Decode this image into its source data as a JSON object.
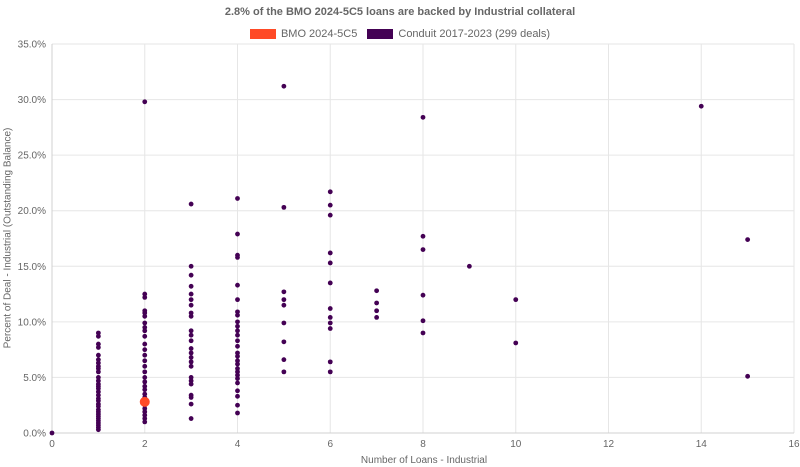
{
  "chart_data": {
    "type": "scatter",
    "title": "2.8% of the BMO 2024-5C5 loans are backed by Industrial collateral",
    "xlabel": "Number of Loans - Industrial",
    "ylabel": "Percent of Deal - Industrial (Outstanding Balance)",
    "xlim": [
      0,
      16
    ],
    "ylim": [
      0,
      35
    ],
    "x_ticks": [
      "0",
      "2",
      "4",
      "6",
      "8",
      "10",
      "12",
      "14",
      "16"
    ],
    "y_ticks": [
      "0.0%",
      "5.0%",
      "10.0%",
      "15.0%",
      "20.0%",
      "25.0%",
      "30.0%",
      "35.0%"
    ],
    "grid": true,
    "legend_position": "top",
    "series": [
      {
        "name": "BMO 2024-5C5",
        "color": "#ff4a26",
        "points": [
          [
            2,
            2.8
          ]
        ]
      },
      {
        "name": "Conduit 2017-2023 (299 deals)",
        "color": "#440154",
        "points": [
          [
            0,
            0
          ],
          [
            1,
            9.0
          ],
          [
            1,
            8.7
          ],
          [
            1,
            8.0
          ],
          [
            1,
            7.7
          ],
          [
            1,
            7.0
          ],
          [
            1,
            6.6
          ],
          [
            1,
            6.3
          ],
          [
            1,
            6.0
          ],
          [
            1,
            5.8
          ],
          [
            1,
            5.5
          ],
          [
            1,
            5.0
          ],
          [
            1,
            4.7
          ],
          [
            1,
            4.4
          ],
          [
            1,
            4.2
          ],
          [
            1,
            4.0
          ],
          [
            1,
            3.7
          ],
          [
            1,
            3.4
          ],
          [
            1,
            3.1
          ],
          [
            1,
            2.9
          ],
          [
            1,
            2.6
          ],
          [
            1,
            2.4
          ],
          [
            1,
            2.1
          ],
          [
            1,
            1.9
          ],
          [
            1,
            1.7
          ],
          [
            1,
            1.5
          ],
          [
            1,
            1.3
          ],
          [
            1,
            1.1
          ],
          [
            1,
            0.9
          ],
          [
            1,
            0.7
          ],
          [
            1,
            0.5
          ],
          [
            1,
            0.3
          ],
          [
            2,
            29.8
          ],
          [
            2,
            12.5
          ],
          [
            2,
            12.2
          ],
          [
            2,
            11.0
          ],
          [
            2,
            10.8
          ],
          [
            2,
            10.5
          ],
          [
            2,
            9.9
          ],
          [
            2,
            9.5
          ],
          [
            2,
            9.2
          ],
          [
            2,
            8.7
          ],
          [
            2,
            8.0
          ],
          [
            2,
            7.5
          ],
          [
            2,
            7.0
          ],
          [
            2,
            6.5
          ],
          [
            2,
            6.0
          ],
          [
            2,
            5.5
          ],
          [
            2,
            5.0
          ],
          [
            2,
            4.6
          ],
          [
            2,
            4.2
          ],
          [
            2,
            3.9
          ],
          [
            2,
            3.5
          ],
          [
            2,
            3.2
          ],
          [
            2,
            2.5
          ],
          [
            2,
            2.2
          ],
          [
            2,
            1.9
          ],
          [
            2,
            1.6
          ],
          [
            2,
            1.3
          ],
          [
            2,
            1.0
          ],
          [
            3,
            20.6
          ],
          [
            3,
            15.0
          ],
          [
            3,
            14.2
          ],
          [
            3,
            13.2
          ],
          [
            3,
            12.5
          ],
          [
            3,
            12.0
          ],
          [
            3,
            11.5
          ],
          [
            3,
            10.8
          ],
          [
            3,
            10.5
          ],
          [
            3,
            9.2
          ],
          [
            3,
            8.8
          ],
          [
            3,
            8.3
          ],
          [
            3,
            7.6
          ],
          [
            3,
            7.2
          ],
          [
            3,
            6.8
          ],
          [
            3,
            6.4
          ],
          [
            3,
            6.0
          ],
          [
            3,
            5.0
          ],
          [
            3,
            4.7
          ],
          [
            3,
            4.4
          ],
          [
            3,
            3.4
          ],
          [
            3,
            3.2
          ],
          [
            3,
            2.6
          ],
          [
            3,
            1.3
          ],
          [
            4,
            21.1
          ],
          [
            4,
            17.9
          ],
          [
            4,
            16.0
          ],
          [
            4,
            15.8
          ],
          [
            4,
            13.3
          ],
          [
            4,
            12.0
          ],
          [
            4,
            10.9
          ],
          [
            4,
            10.6
          ],
          [
            4,
            10.0
          ],
          [
            4,
            9.6
          ],
          [
            4,
            9.2
          ],
          [
            4,
            8.8
          ],
          [
            4,
            8.3
          ],
          [
            4,
            7.8
          ],
          [
            4,
            7.2
          ],
          [
            4,
            6.9
          ],
          [
            4,
            6.5
          ],
          [
            4,
            6.2
          ],
          [
            4,
            5.8
          ],
          [
            4,
            5.5
          ],
          [
            4,
            5.2
          ],
          [
            4,
            4.9
          ],
          [
            4,
            4.5
          ],
          [
            4,
            3.8
          ],
          [
            4,
            3.3
          ],
          [
            4,
            2.5
          ],
          [
            4,
            1.8
          ],
          [
            5,
            31.2
          ],
          [
            5,
            20.3
          ],
          [
            5,
            12.7
          ],
          [
            5,
            12.0
          ],
          [
            5,
            11.5
          ],
          [
            5,
            9.9
          ],
          [
            5,
            8.2
          ],
          [
            5,
            6.6
          ],
          [
            5,
            5.5
          ],
          [
            6,
            21.7
          ],
          [
            6,
            20.5
          ],
          [
            6,
            19.6
          ],
          [
            6,
            16.2
          ],
          [
            6,
            15.3
          ],
          [
            6,
            13.5
          ],
          [
            6,
            11.2
          ],
          [
            6,
            10.4
          ],
          [
            6,
            9.9
          ],
          [
            6,
            9.4
          ],
          [
            6,
            6.4
          ],
          [
            6,
            5.5
          ],
          [
            7,
            12.8
          ],
          [
            7,
            11.7
          ],
          [
            7,
            11.0
          ],
          [
            7,
            10.4
          ],
          [
            8,
            28.4
          ],
          [
            8,
            17.7
          ],
          [
            8,
            16.5
          ],
          [
            8,
            12.4
          ],
          [
            8,
            10.1
          ],
          [
            8,
            9.0
          ],
          [
            9,
            15.0
          ],
          [
            10,
            12.0
          ],
          [
            10,
            8.1
          ],
          [
            14,
            29.4
          ],
          [
            15,
            17.4
          ],
          [
            15,
            5.1
          ]
        ]
      }
    ]
  }
}
